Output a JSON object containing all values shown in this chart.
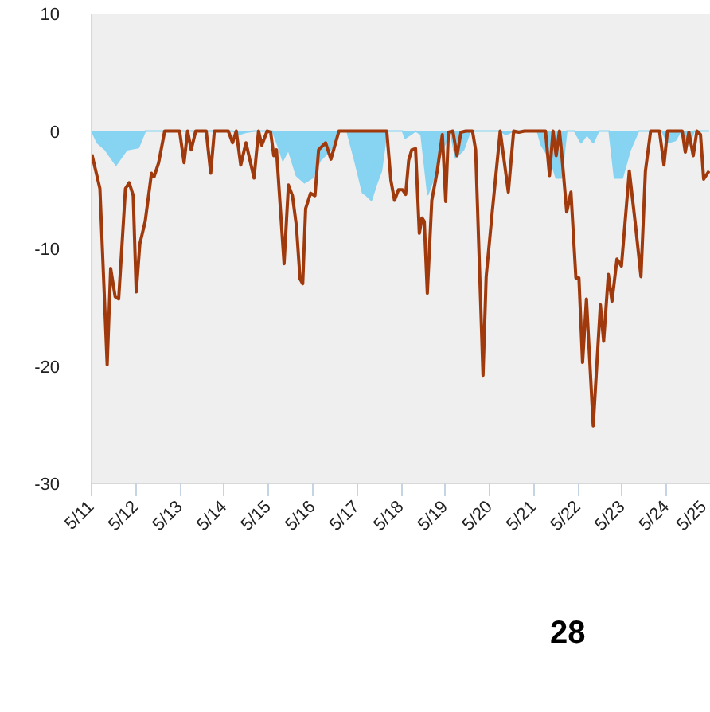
{
  "chart_data": {
    "type": "area",
    "xlim": [
      "2011-05-01",
      "2025-05-01"
    ],
    "ylim": [
      -30,
      10
    ],
    "xticks": [
      {
        "value": "2011-05",
        "label": "5/11"
      },
      {
        "value": "2012-05",
        "label": "5/12"
      },
      {
        "value": "2013-05",
        "label": "5/13"
      },
      {
        "value": "2014-05",
        "label": "5/14"
      },
      {
        "value": "2015-05",
        "label": "5/15"
      },
      {
        "value": "2016-05",
        "label": "5/16"
      },
      {
        "value": "2017-05",
        "label": "5/17"
      },
      {
        "value": "2018-05",
        "label": "5/18"
      },
      {
        "value": "2019-05",
        "label": "5/19"
      },
      {
        "value": "2020-05",
        "label": "5/20"
      },
      {
        "value": "2021-05",
        "label": "5/21"
      },
      {
        "value": "2022-05",
        "label": "5/22"
      },
      {
        "value": "2023-05",
        "label": "5/23"
      },
      {
        "value": "2024-05",
        "label": "5/24"
      },
      {
        "value": "2025-05",
        "label": "5/25"
      }
    ],
    "yticks": [
      10,
      0,
      -10,
      -20,
      -30
    ],
    "annotations": [
      "28"
    ],
    "series": [
      {
        "color": "#86d3f2",
        "x": [
          "2011-05-04",
          "2011-06-18",
          "2011-08-23",
          "2011-11-19",
          "2012-02-15",
          "2012-05-23",
          "2012-07-17",
          "2014-07-09",
          "2014-08-23",
          "2014-10-27",
          "2015-01-02",
          "2015-06-03",
          "2015-07-17",
          "2015-08-28",
          "2015-10-13",
          "2015-12-18",
          "2016-02-23",
          "2016-04-27",
          "2016-07-02",
          "2016-09-28",
          "2016-12-03",
          "2017-02-08",
          "2017-04-13",
          "2017-06-18",
          "2017-07-09",
          "2017-08-28",
          "2017-10-06",
          "2017-11-19",
          "2018-01-02",
          "2018-05-12",
          "2018-06-03",
          "2018-07-17",
          "2018-08-28",
          "2018-10-13",
          "2018-12-07",
          "2019-02-01",
          "2019-03-21",
          "2019-06-11",
          "2019-07-24",
          "2019-09-28",
          "2019-11-23",
          "2020-07-27",
          "2020-09-11",
          "2020-11-15",
          "2021-05-30",
          "2021-07-02",
          "2021-09-18",
          "2021-11-01",
          "2021-12-14",
          "2022-01-27",
          "2022-04-02",
          "2022-05-26",
          "2022-07-13",
          "2022-09-03",
          "2022-10-17",
          "2023-01-13",
          "2023-02-26",
          "2023-05-01",
          "2023-07-06",
          "2023-09-11",
          "2024-03-25",
          "2024-05-08",
          "2024-07-13",
          "2024-08-26",
          "2024-11-01",
          "2024-12-14",
          "2025-04-17"
        ],
        "values": [
          0,
          -1.0,
          -1.6,
          -2.9,
          -1.6,
          -1.4,
          0,
          0,
          -0.3,
          -0.1,
          0,
          0,
          -1.2,
          -2.5,
          -1.6,
          -3.8,
          -4.4,
          -4.0,
          -2.5,
          -1.6,
          0,
          0,
          -2.5,
          -5.3,
          -5.4,
          -5.9,
          -4.6,
          -3.4,
          0,
          0,
          -0.6,
          -0.3,
          0,
          -0.3,
          -5.4,
          -3.8,
          -2.1,
          0,
          -2.3,
          -1.6,
          0,
          0,
          -0.3,
          0,
          0,
          -1.2,
          -2.5,
          -4.0,
          -4.0,
          0,
          0,
          -1.0,
          -0.3,
          -1.0,
          0,
          0,
          -4.0,
          -4.0,
          -1.6,
          0,
          0,
          -1.0,
          -0.8,
          0,
          -1.2,
          0,
          0
        ]
      },
      {
        "type": "line",
        "color": "#a0390b",
        "x": [
          "2011-05-04",
          "2011-07-09",
          "2011-09-07",
          "2011-10-06",
          "2011-11-12",
          "2011-12-11",
          "2012-02-05",
          "2012-03-07",
          "2012-04-09",
          "2012-05-04",
          "2012-06-03",
          "2012-07-17",
          "2012-09-07",
          "2012-09-28",
          "2012-11-05",
          "2012-12-25",
          "2013-04-27",
          "2013-06-03",
          "2013-07-02",
          "2013-08-01",
          "2013-09-07",
          "2013-12-03",
          "2014-01-09",
          "2014-02-08",
          "2014-06-03",
          "2014-07-09",
          "2014-08-08",
          "2014-09-14",
          "2014-10-27",
          "2015-01-02",
          "2015-02-08",
          "2015-03-07",
          "2015-04-20",
          "2015-05-19",
          "2015-06-14",
          "2015-07-06",
          "2015-09-07",
          "2015-10-13",
          "2015-11-15",
          "2015-12-18",
          "2016-01-17",
          "2016-02-08",
          "2016-03-03",
          "2016-04-13",
          "2016-05-19",
          "2016-06-18",
          "2016-08-15",
          "2016-09-28",
          "2016-12-03",
          "2018-01-02",
          "2018-02-05",
          "2018-03-07",
          "2018-04-09",
          "2018-05-12",
          "2018-06-07",
          "2018-07-02",
          "2018-07-27",
          "2018-08-28",
          "2018-09-28",
          "2018-10-20",
          "2018-11-08",
          "2018-12-03",
          "2019-01-09",
          "2019-02-23",
          "2019-04-06",
          "2019-05-04",
          "2019-05-26",
          "2019-07-02",
          "2019-08-05",
          "2019-09-07",
          "2019-10-17",
          "2019-12-11",
          "2020-01-06",
          "2020-03-07",
          "2020-04-02",
          "2020-05-23",
          "2020-07-27",
          "2020-10-02",
          "2020-11-15",
          "2020-12-28",
          "2021-02-12",
          "2021-08-05",
          "2021-09-07",
          "2021-10-06",
          "2021-11-01",
          "2021-11-28",
          "2021-12-14",
          "2022-01-27",
          "2022-03-03",
          "2022-04-13",
          "2022-05-08",
          "2022-06-07",
          "2022-07-09",
          "2022-09-03",
          "2022-11-01",
          "2022-11-28",
          "2023-01-06",
          "2023-02-05",
          "2023-03-18",
          "2023-04-24",
          "2023-06-28",
          "2023-08-19",
          "2023-10-02",
          "2023-11-08",
          "2023-12-21",
          "2024-03-03",
          "2024-04-09",
          "2024-05-08",
          "2024-09-07",
          "2024-10-02",
          "2024-11-01",
          "2024-12-07",
          "2025-01-06",
          "2025-02-05",
          "2025-03-03",
          "2025-04-17"
        ],
        "values": [
          -2.0,
          -4.9,
          -19.9,
          -11.7,
          -14.1,
          -14.3,
          -4.9,
          -4.4,
          -5.5,
          -13.7,
          -9.6,
          -7.7,
          -3.6,
          -3.9,
          -2.7,
          0,
          0,
          -2.7,
          0,
          -1.6,
          0,
          0,
          -3.6,
          0,
          0,
          -1.0,
          0,
          -2.9,
          -1.0,
          -4.0,
          0,
          -1.2,
          0,
          -0.1,
          -2.1,
          -1.6,
          -11.3,
          -4.6,
          -5.5,
          -8.1,
          -12.6,
          -13.0,
          -6.6,
          -5.3,
          -5.5,
          -1.6,
          -1.0,
          -2.4,
          0,
          0,
          -4.2,
          -5.9,
          -5.0,
          -5.0,
          -5.4,
          -2.5,
          -1.6,
          -1.5,
          -8.7,
          -7.4,
          -7.7,
          -13.8,
          -5.9,
          -3.4,
          -0.3,
          -6.0,
          -0.1,
          0,
          -2.1,
          -0.1,
          0,
          0,
          -1.6,
          -20.8,
          -12.4,
          -6.8,
          0,
          -5.2,
          0,
          -0.1,
          0,
          0,
          -3.8,
          0,
          -2.1,
          0,
          -1.6,
          -6.9,
          -5.2,
          -12.5,
          -12.5,
          -19.7,
          -14.3,
          -25.1,
          -14.8,
          -17.9,
          -12.2,
          -14.5,
          -10.9,
          -11.5,
          -3.4,
          -8.1,
          -12.4,
          -3.4,
          0,
          0,
          -2.9,
          0,
          0,
          -1.8,
          -0.1,
          -2.1,
          0,
          -0.3,
          -4.1,
          -3.4
        ]
      }
    ]
  }
}
